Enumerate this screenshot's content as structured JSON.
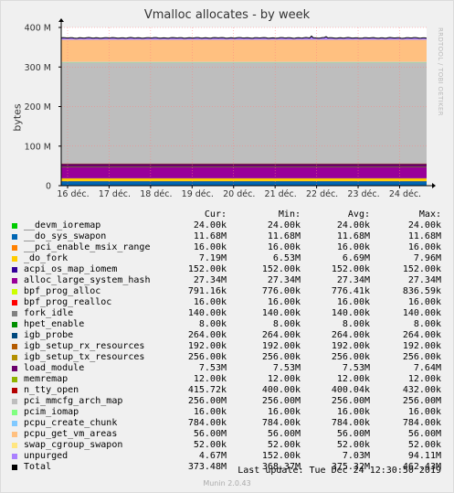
{
  "title": "Vmalloc allocates - by week",
  "side_label": "RRDTOOL / TOBI OETIKER",
  "chart_data": {
    "type": "area",
    "title": "Vmalloc allocates - by week",
    "ylabel": "bytes",
    "xlabel": "",
    "ylim": [
      0,
      400
    ],
    "y_unit": "M",
    "yticks": [
      {
        "value": 0,
        "label": "0"
      },
      {
        "value": 100,
        "label": "100 M"
      },
      {
        "value": 200,
        "label": "200 M"
      },
      {
        "value": 300,
        "label": "300 M"
      },
      {
        "value": 400,
        "label": "400 M"
      }
    ],
    "xticks": [
      "16 déc.",
      "17 déc.",
      "18 déc.",
      "19 déc.",
      "20 déc.",
      "21 déc.",
      "22 déc.",
      "23 déc.",
      "24 déc."
    ],
    "stacked": true,
    "grid": true,
    "series": [
      {
        "name": "__devm_ioremap",
        "color": "#00cc00",
        "value": 0.024
      },
      {
        "name": "__do_sys_swapon",
        "color": "#0066b3",
        "value": 11.68
      },
      {
        "name": "__pci_enable_msix_range",
        "color": "#ff8000",
        "value": 0.016
      },
      {
        "name": "_do_fork",
        "color": "#ffcc00",
        "value": 7.19
      },
      {
        "name": "acpi_os_map_iomem",
        "color": "#330099",
        "value": 0.152
      },
      {
        "name": "alloc_large_system_hash",
        "color": "#990099",
        "value": 27.34
      },
      {
        "name": "bpf_prog_alloc",
        "color": "#ccff00",
        "value": 0.791
      },
      {
        "name": "bpf_prog_realloc",
        "color": "#ff0000",
        "value": 0.016
      },
      {
        "name": "fork_idle",
        "color": "#808080",
        "value": 0.14
      },
      {
        "name": "hpet_enable",
        "color": "#008f00",
        "value": 0.008
      },
      {
        "name": "igb_probe",
        "color": "#00487d",
        "value": 0.264
      },
      {
        "name": "igb_setup_rx_resources",
        "color": "#b35a00",
        "value": 0.192
      },
      {
        "name": "igb_setup_tx_resources",
        "color": "#b38f00",
        "value": 0.256
      },
      {
        "name": "load_module",
        "color": "#6b006b",
        "value": 7.53
      },
      {
        "name": "memremap",
        "color": "#8fb300",
        "value": 0.012
      },
      {
        "name": "n_tty_open",
        "color": "#b30000",
        "value": 0.416
      },
      {
        "name": "pci_mmcfg_arch_map",
        "color": "#bebebe",
        "value": 256
      },
      {
        "name": "pcim_iomap",
        "color": "#80ff80",
        "value": 0.016
      },
      {
        "name": "pcpu_create_chunk",
        "color": "#80c9ff",
        "value": 0.784
      },
      {
        "name": "pcpu_get_vm_areas",
        "color": "#ffc080",
        "value": 56
      },
      {
        "name": "swap_cgroup_swapon",
        "color": "#ffe680",
        "value": 0.052
      },
      {
        "name": "unpurged",
        "color": "#aa80ff",
        "value": 4.67
      }
    ],
    "total": {
      "name": "Total",
      "color": "#000000",
      "min": 368.37,
      "max": 462.43,
      "avg": 375.32,
      "cur": 373.48
    }
  },
  "legend": {
    "headers": {
      "cur": "Cur:",
      "min": "Min:",
      "avg": "Avg:",
      "max": "Max:"
    },
    "rows": [
      {
        "name": "__devm_ioremap",
        "color": "#00cc00",
        "cur": "24.00k",
        "min": "24.00k",
        "avg": "24.00k",
        "max": "24.00k"
      },
      {
        "name": "__do_sys_swapon",
        "color": "#0066b3",
        "cur": "11.68M",
        "min": "11.68M",
        "avg": "11.68M",
        "max": "11.68M"
      },
      {
        "name": "__pci_enable_msix_range",
        "color": "#ff8000",
        "cur": "16.00k",
        "min": "16.00k",
        "avg": "16.00k",
        "max": "16.00k"
      },
      {
        "name": "_do_fork",
        "color": "#ffcc00",
        "cur": "7.19M",
        "min": "6.53M",
        "avg": "6.69M",
        "max": "7.96M"
      },
      {
        "name": "acpi_os_map_iomem",
        "color": "#330099",
        "cur": "152.00k",
        "min": "152.00k",
        "avg": "152.00k",
        "max": "152.00k"
      },
      {
        "name": "alloc_large_system_hash",
        "color": "#990099",
        "cur": "27.34M",
        "min": "27.34M",
        "avg": "27.34M",
        "max": "27.34M"
      },
      {
        "name": "bpf_prog_alloc",
        "color": "#ccff00",
        "cur": "791.16k",
        "min": "776.00k",
        "avg": "776.41k",
        "max": "836.59k"
      },
      {
        "name": "bpf_prog_realloc",
        "color": "#ff0000",
        "cur": "16.00k",
        "min": "16.00k",
        "avg": "16.00k",
        "max": "16.00k"
      },
      {
        "name": "fork_idle",
        "color": "#808080",
        "cur": "140.00k",
        "min": "140.00k",
        "avg": "140.00k",
        "max": "140.00k"
      },
      {
        "name": "hpet_enable",
        "color": "#008f00",
        "cur": "8.00k",
        "min": "8.00k",
        "avg": "8.00k",
        "max": "8.00k"
      },
      {
        "name": "igb_probe",
        "color": "#00487d",
        "cur": "264.00k",
        "min": "264.00k",
        "avg": "264.00k",
        "max": "264.00k"
      },
      {
        "name": "igb_setup_rx_resources",
        "color": "#b35a00",
        "cur": "192.00k",
        "min": "192.00k",
        "avg": "192.00k",
        "max": "192.00k"
      },
      {
        "name": "igb_setup_tx_resources",
        "color": "#b38f00",
        "cur": "256.00k",
        "min": "256.00k",
        "avg": "256.00k",
        "max": "256.00k"
      },
      {
        "name": "load_module",
        "color": "#6b006b",
        "cur": "7.53M",
        "min": "7.53M",
        "avg": "7.53M",
        "max": "7.64M"
      },
      {
        "name": "memremap",
        "color": "#8fb300",
        "cur": "12.00k",
        "min": "12.00k",
        "avg": "12.00k",
        "max": "12.00k"
      },
      {
        "name": "n_tty_open",
        "color": "#b30000",
        "cur": "415.72k",
        "min": "400.00k",
        "avg": "400.04k",
        "max": "432.00k"
      },
      {
        "name": "pci_mmcfg_arch_map",
        "color": "#bebebe",
        "cur": "256.00M",
        "min": "256.00M",
        "avg": "256.00M",
        "max": "256.00M"
      },
      {
        "name": "pcim_iomap",
        "color": "#80ff80",
        "cur": "16.00k",
        "min": "16.00k",
        "avg": "16.00k",
        "max": "16.00k"
      },
      {
        "name": "pcpu_create_chunk",
        "color": "#80c9ff",
        "cur": "784.00k",
        "min": "784.00k",
        "avg": "784.00k",
        "max": "784.00k"
      },
      {
        "name": "pcpu_get_vm_areas",
        "color": "#ffc080",
        "cur": "56.00M",
        "min": "56.00M",
        "avg": "56.00M",
        "max": "56.00M"
      },
      {
        "name": "swap_cgroup_swapon",
        "color": "#ffe680",
        "cur": "52.00k",
        "min": "52.00k",
        "avg": "52.00k",
        "max": "52.00k"
      },
      {
        "name": "unpurged",
        "color": "#aa80ff",
        "cur": "4.67M",
        "min": "152.00k",
        "avg": "7.03M",
        "max": "94.11M"
      },
      {
        "name": "Total",
        "color": "#000000",
        "cur": "373.48M",
        "min": "368.37M",
        "avg": "375.32M",
        "max": "462.43M"
      }
    ]
  },
  "last_update": "Last update: Tue Dec 24 12:30:50 2019",
  "footer": "Munin 2.0.43"
}
